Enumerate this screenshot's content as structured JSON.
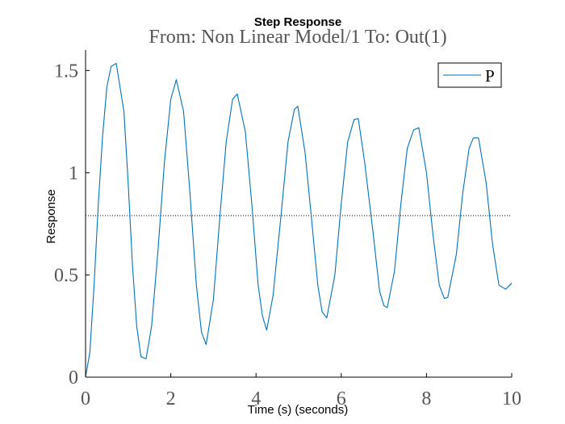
{
  "chart_data": {
    "type": "line",
    "title": "Step Response",
    "subtitle": "From: Non Linear Model/1  To: Out(1)",
    "xlabel": "Time (s) (seconds)",
    "ylabel": "Response",
    "xlim": [
      0,
      10
    ],
    "ylim": [
      0,
      1.6
    ],
    "x_ticks": [
      0,
      2,
      4,
      6,
      8,
      10
    ],
    "y_ticks": [
      0,
      0.5,
      1,
      1.5
    ],
    "x_tick_labels": [
      "0",
      "2",
      "4",
      "6",
      "8",
      "10"
    ],
    "y_tick_labels": [
      "0",
      "0.5",
      "1",
      "1.5"
    ],
    "grid": false,
    "legend_position": "top-right",
    "reference_line": {
      "y": 0.79,
      "style": "dotted",
      "color": "#000000"
    },
    "series": [
      {
        "name": "P",
        "color": "#0072bd",
        "x": [
          0,
          0.1,
          0.2,
          0.3,
          0.4,
          0.5,
          0.6,
          0.72,
          0.9,
          1.0,
          1.1,
          1.2,
          1.3,
          1.42,
          1.55,
          1.7,
          1.85,
          2.0,
          2.13,
          2.3,
          2.45,
          2.6,
          2.72,
          2.83,
          3.0,
          3.15,
          3.3,
          3.45,
          3.56,
          3.75,
          3.9,
          4.05,
          4.15,
          4.25,
          4.4,
          4.6,
          4.75,
          4.9,
          4.98,
          5.15,
          5.3,
          5.45,
          5.55,
          5.66,
          5.85,
          6.0,
          6.15,
          6.3,
          6.4,
          6.55,
          6.75,
          6.9,
          7.0,
          7.08,
          7.25,
          7.4,
          7.55,
          7.7,
          7.82,
          8.0,
          8.15,
          8.3,
          8.42,
          8.5,
          8.7,
          8.85,
          9.0,
          9.1,
          9.22,
          9.4,
          9.55,
          9.7,
          9.86,
          10.0
        ],
        "y": [
          0,
          0.12,
          0.45,
          0.85,
          1.18,
          1.42,
          1.52,
          1.535,
          1.3,
          0.95,
          0.55,
          0.25,
          0.1,
          0.09,
          0.25,
          0.62,
          1.05,
          1.36,
          1.455,
          1.3,
          0.9,
          0.45,
          0.22,
          0.16,
          0.38,
          0.78,
          1.15,
          1.36,
          1.385,
          1.2,
          0.85,
          0.45,
          0.3,
          0.23,
          0.4,
          0.82,
          1.15,
          1.31,
          1.325,
          1.1,
          0.78,
          0.45,
          0.32,
          0.29,
          0.5,
          0.85,
          1.15,
          1.26,
          1.265,
          1.05,
          0.7,
          0.42,
          0.35,
          0.34,
          0.52,
          0.85,
          1.12,
          1.21,
          1.22,
          1.0,
          0.7,
          0.45,
          0.385,
          0.39,
          0.6,
          0.9,
          1.12,
          1.17,
          1.17,
          0.95,
          0.65,
          0.45,
          0.43,
          0.46
        ]
      }
    ]
  }
}
